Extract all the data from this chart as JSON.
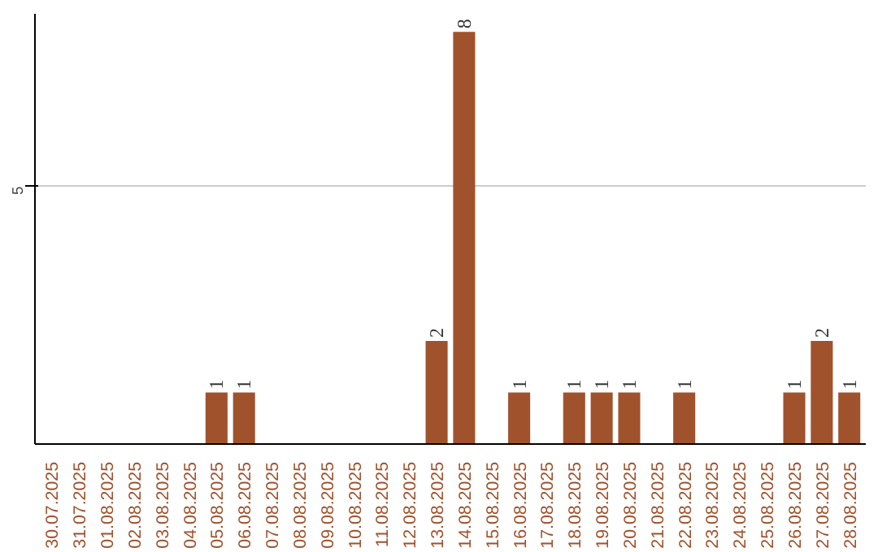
{
  "chart_data": {
    "type": "bar",
    "categories": [
      "30.07.2025",
      "31.07.2025",
      "01.08.2025",
      "02.08.2025",
      "03.08.2025",
      "04.08.2025",
      "05.08.2025",
      "06.08.2025",
      "07.08.2025",
      "08.08.2025",
      "09.08.2025",
      "10.08.2025",
      "11.08.2025",
      "12.08.2025",
      "13.08.2025",
      "14.08.2025",
      "15.08.2025",
      "16.08.2025",
      "17.08.2025",
      "18.08.2025",
      "19.08.2025",
      "20.08.2025",
      "21.08.2025",
      "22.08.2025",
      "23.08.2025",
      "24.08.2025",
      "25.08.2025",
      "26.08.2025",
      "27.08.2025",
      "28.08.2025"
    ],
    "values": [
      0,
      0,
      0,
      0,
      0,
      0,
      1,
      1,
      0,
      0,
      0,
      0,
      0,
      0,
      2,
      8,
      0,
      1,
      0,
      1,
      1,
      1,
      0,
      1,
      0,
      0,
      0,
      1,
      2,
      1
    ],
    "value_labels": [
      null,
      null,
      null,
      null,
      null,
      null,
      "1",
      "1",
      null,
      null,
      null,
      null,
      null,
      null,
      "2",
      "8",
      null,
      "1",
      null,
      "1",
      "1",
      "1",
      null,
      "1",
      null,
      null,
      null,
      "1",
      "2",
      "1"
    ],
    "color": "#a0522d",
    "ylim": [
      0,
      8.35
    ],
    "yticks": [
      5
    ],
    "grid": "y"
  }
}
